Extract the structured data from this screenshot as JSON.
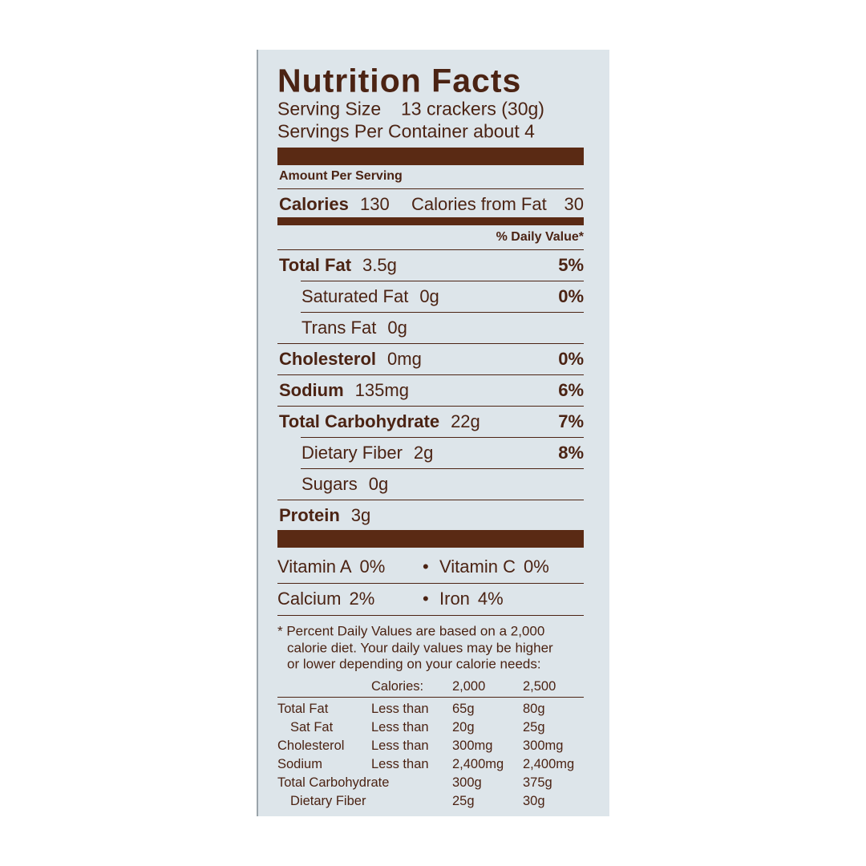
{
  "title": "Nutrition Facts",
  "serving_size": {
    "label": "Serving Size",
    "value": "13 crackers (30g)"
  },
  "servings_per_container": "Servings Per Container about 4",
  "amount_per_serving": "Amount Per Serving",
  "calories": {
    "label": "Calories",
    "value": "130",
    "from_fat_label": "Calories from Fat",
    "from_fat": "30"
  },
  "daily_value_header": "% Daily Value*",
  "nutrients": [
    {
      "name": "Total Fat",
      "amount": "3.5g",
      "dv": "5%",
      "sub": [
        {
          "name": "Saturated Fat",
          "amount": "0g",
          "dv": "0%"
        },
        {
          "name": "Trans Fat",
          "amount": "0g"
        }
      ]
    },
    {
      "name": "Cholesterol",
      "amount": "0mg",
      "dv": "0%"
    },
    {
      "name": "Sodium",
      "amount": "135mg",
      "dv": "6%"
    },
    {
      "name": "Total Carbohydrate",
      "amount": "22g",
      "dv": "7%",
      "sub": [
        {
          "name": "Dietary Fiber",
          "amount": "2g",
          "dv": "8%"
        },
        {
          "name": "Sugars",
          "amount": "0g"
        }
      ]
    },
    {
      "name": "Protein",
      "amount": "3g"
    }
  ],
  "vitamins": [
    [
      {
        "name": "Vitamin A",
        "value": "0%"
      },
      {
        "name": "Vitamin C",
        "value": "0%"
      }
    ],
    [
      {
        "name": "Calcium",
        "value": "2%"
      },
      {
        "name": "Iron",
        "value": "4%"
      }
    ]
  ],
  "footnote": [
    "* Percent Daily Values are based on a 2,000",
    "calorie diet. Your daily values may be higher",
    "or lower depending on your calorie needs:"
  ],
  "reference_table": {
    "header": [
      "Calories:",
      "2,000",
      "2,500"
    ],
    "rows": [
      {
        "name": "Total Fat",
        "limit": "Less than",
        "values": [
          "65g",
          "80g"
        ],
        "sub": [
          {
            "name": "Sat Fat",
            "limit": "Less than",
            "values": [
              "20g",
              "25g"
            ]
          }
        ]
      },
      {
        "name": "Cholesterol",
        "limit": "Less than",
        "values": [
          "300mg",
          "300mg"
        ]
      },
      {
        "name": "Sodium",
        "limit": "Less than",
        "values": [
          "2,400mg",
          "2,400mg"
        ]
      },
      {
        "name": "Total Carbohydrate",
        "values": [
          "300g",
          "375g"
        ],
        "sub": [
          {
            "name": "Dietary Fiber",
            "values": [
              "25g",
              "30g"
            ]
          }
        ]
      }
    ]
  }
}
